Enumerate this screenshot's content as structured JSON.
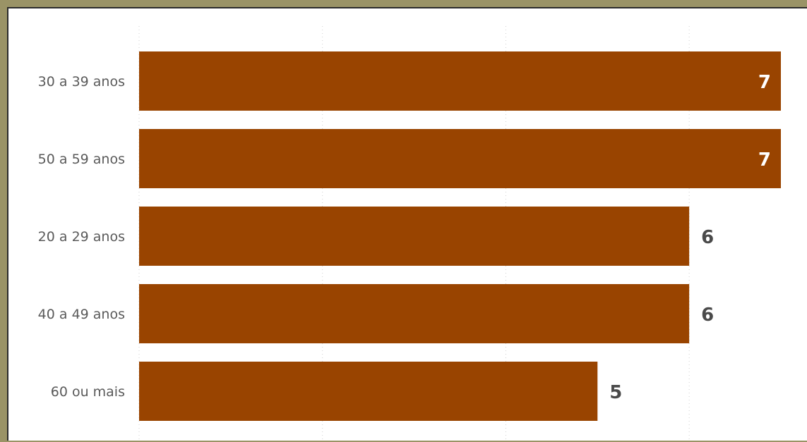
{
  "colors": {
    "frame": "#9a9366",
    "bar": "#994400",
    "label_inside": "#ffffff",
    "label_outside": "#4a4a4a",
    "category_text": "#5a5a5a",
    "grid": "#d0d0d0"
  },
  "chart_data": {
    "type": "bar",
    "orientation": "horizontal",
    "categories": [
      "30 a 39 anos",
      "50 a 59 anos",
      "20 a 29 anos",
      "40 a 49 anos",
      "60 ou mais"
    ],
    "values": [
      7,
      7,
      6,
      6,
      5
    ],
    "xlim": [
      0,
      7
    ],
    "grid": true,
    "data_labels": true
  }
}
